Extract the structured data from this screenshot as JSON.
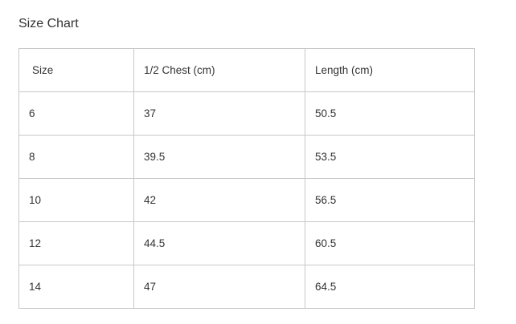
{
  "title": "Size Chart",
  "table": {
    "headers": [
      "Size",
      "1/2 Chest (cm)",
      "Length (cm)"
    ],
    "rows": [
      [
        "6",
        "37",
        "50.5"
      ],
      [
        "8",
        "39.5",
        "53.5"
      ],
      [
        "10",
        "42",
        "56.5"
      ],
      [
        "12",
        "44.5",
        "60.5"
      ],
      [
        "14",
        "47",
        "64.5"
      ]
    ]
  }
}
